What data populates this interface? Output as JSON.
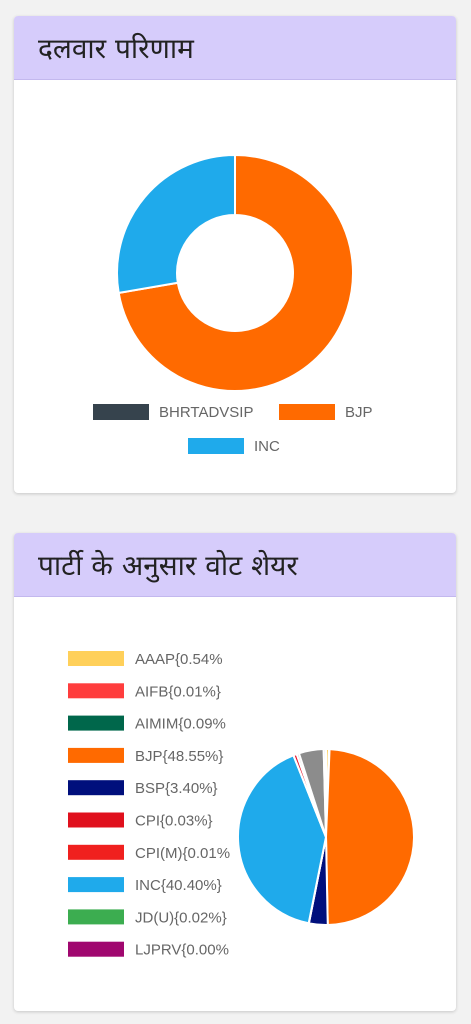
{
  "cards": [
    {
      "title": "दलवार परिणाम"
    },
    {
      "title": "पार्टी के अनुसार वोट शेयर"
    }
  ],
  "chart_data": [
    {
      "type": "pie",
      "variant": "doughnut",
      "title": "",
      "legend_position": "bottom",
      "series": [
        {
          "name": "BHRTADVSIP",
          "value": 0,
          "color": "#36434d"
        },
        {
          "name": "BJP",
          "value": 72.3,
          "color": "#ff6a00"
        },
        {
          "name": "INC",
          "value": 27.7,
          "color": "#1faaeb"
        }
      ]
    },
    {
      "type": "pie",
      "title": "",
      "legend_position": "left",
      "series": [
        {
          "name": "AAAP",
          "label": "AAAP{0.54%",
          "value": 0.54,
          "color": "#ffd05a"
        },
        {
          "name": "AIFB",
          "label": "AIFB{0.01%}",
          "value": 0.01,
          "color": "#ff3d3d"
        },
        {
          "name": "AIMIM",
          "label": "AIMIM{0.09%",
          "value": 0.09,
          "color": "#00674b"
        },
        {
          "name": "BJP",
          "label": "BJP{48.55%}",
          "value": 48.55,
          "color": "#ff6a00"
        },
        {
          "name": "BSP",
          "label": "BSP{3.40%}",
          "value": 3.4,
          "color": "#000f7c"
        },
        {
          "name": "CPI",
          "label": "CPI{0.03%}",
          "value": 0.03,
          "color": "#e0101d"
        },
        {
          "name": "CPI(M)",
          "label": "CPI(M){0.01%",
          "value": 0.01,
          "color": "#f0201e"
        },
        {
          "name": "INC",
          "label": "INC{40.40%}",
          "value": 40.4,
          "color": "#1faaeb"
        },
        {
          "name": "JD(U)",
          "label": "JD(U){0.02%}",
          "value": 0.02,
          "color": "#3cad50"
        },
        {
          "name": "LJPRV",
          "label": "LJPRV{0.00%",
          "value": 0.0,
          "color": "#a0076f"
        },
        {
          "name": "",
          "label": "",
          "value": 0.6,
          "color": "#e8102a"
        },
        {
          "name": "",
          "label": "",
          "value": 0.44,
          "color": "#c9c9c9"
        },
        {
          "name": "",
          "label": "",
          "value": 4.5,
          "color": "#8c8c8c"
        },
        {
          "name": "",
          "label": "",
          "value": 0.42,
          "color": "#e0e0e0"
        }
      ]
    }
  ]
}
